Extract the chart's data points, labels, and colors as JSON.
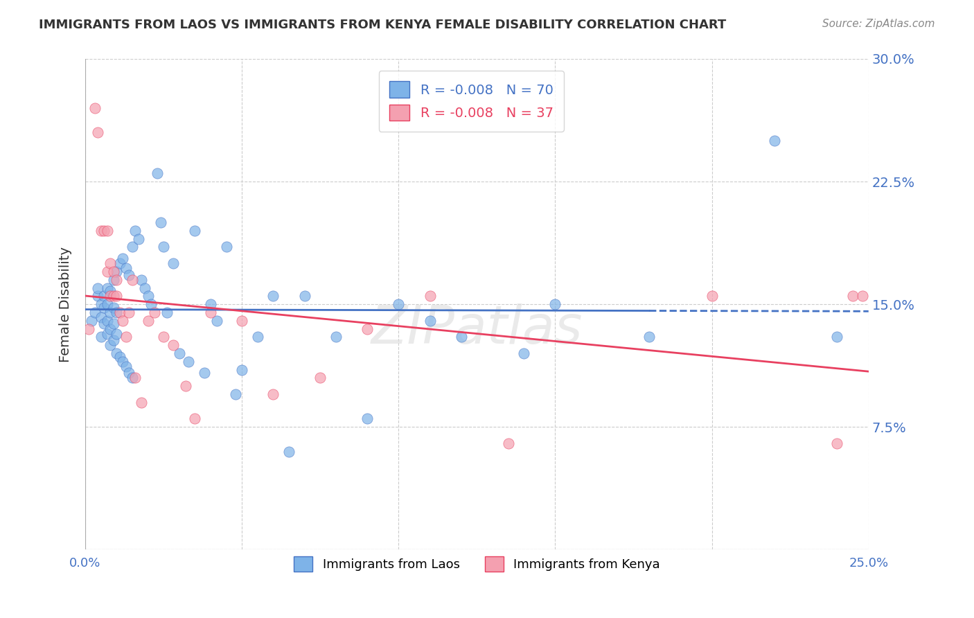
{
  "title": "IMMIGRANTS FROM LAOS VS IMMIGRANTS FROM KENYA FEMALE DISABILITY CORRELATION CHART",
  "source": "Source: ZipAtlas.com",
  "ylabel": "Female Disability",
  "xlim": [
    0.0,
    0.25
  ],
  "ylim": [
    0.0,
    0.3
  ],
  "xticks": [
    0.0,
    0.05,
    0.1,
    0.15,
    0.2,
    0.25
  ],
  "yticks": [
    0.0,
    0.075,
    0.15,
    0.225,
    0.3
  ],
  "xtick_labels": [
    "0.0%",
    "",
    "",
    "",
    "",
    "25.0%"
  ],
  "ytick_labels": [
    "",
    "7.5%",
    "15.0%",
    "22.5%",
    "30.0%"
  ],
  "legend_laos": "R = -0.008   N = 70",
  "legend_kenya": "R = -0.008   N = 37",
  "color_laos": "#7EB3E8",
  "color_kenya": "#F4A0B0",
  "regression_color_laos": "#4472C4",
  "regression_color_kenya": "#E84060",
  "watermark": "ZIPatlas",
  "background_color": "#FFFFFF",
  "laos_x": [
    0.002,
    0.003,
    0.004,
    0.004,
    0.005,
    0.005,
    0.005,
    0.006,
    0.006,
    0.006,
    0.007,
    0.007,
    0.007,
    0.007,
    0.008,
    0.008,
    0.008,
    0.008,
    0.009,
    0.009,
    0.009,
    0.009,
    0.01,
    0.01,
    0.01,
    0.01,
    0.011,
    0.011,
    0.012,
    0.012,
    0.013,
    0.013,
    0.014,
    0.014,
    0.015,
    0.015,
    0.016,
    0.017,
    0.018,
    0.019,
    0.02,
    0.021,
    0.023,
    0.024,
    0.025,
    0.026,
    0.028,
    0.03,
    0.033,
    0.035,
    0.038,
    0.04,
    0.042,
    0.045,
    0.048,
    0.05,
    0.055,
    0.06,
    0.065,
    0.07,
    0.08,
    0.09,
    0.1,
    0.11,
    0.12,
    0.14,
    0.15,
    0.18,
    0.22,
    0.24
  ],
  "laos_y": [
    0.14,
    0.145,
    0.155,
    0.16,
    0.13,
    0.142,
    0.15,
    0.138,
    0.148,
    0.155,
    0.132,
    0.14,
    0.15,
    0.16,
    0.125,
    0.135,
    0.145,
    0.158,
    0.128,
    0.138,
    0.148,
    0.165,
    0.12,
    0.132,
    0.145,
    0.17,
    0.118,
    0.175,
    0.115,
    0.178,
    0.112,
    0.172,
    0.108,
    0.168,
    0.105,
    0.185,
    0.195,
    0.19,
    0.165,
    0.16,
    0.155,
    0.15,
    0.23,
    0.2,
    0.185,
    0.145,
    0.175,
    0.12,
    0.115,
    0.195,
    0.108,
    0.15,
    0.14,
    0.185,
    0.095,
    0.11,
    0.13,
    0.155,
    0.06,
    0.155,
    0.13,
    0.08,
    0.15,
    0.14,
    0.13,
    0.12,
    0.15,
    0.13,
    0.25,
    0.13
  ],
  "kenya_x": [
    0.001,
    0.003,
    0.004,
    0.005,
    0.006,
    0.007,
    0.007,
    0.008,
    0.008,
    0.009,
    0.009,
    0.01,
    0.01,
    0.011,
    0.012,
    0.013,
    0.014,
    0.015,
    0.016,
    0.018,
    0.02,
    0.022,
    0.025,
    0.028,
    0.032,
    0.035,
    0.04,
    0.05,
    0.06,
    0.075,
    0.09,
    0.11,
    0.135,
    0.2,
    0.24,
    0.245,
    0.248
  ],
  "kenya_y": [
    0.135,
    0.27,
    0.255,
    0.195,
    0.195,
    0.195,
    0.17,
    0.175,
    0.155,
    0.17,
    0.155,
    0.165,
    0.155,
    0.145,
    0.14,
    0.13,
    0.145,
    0.165,
    0.105,
    0.09,
    0.14,
    0.145,
    0.13,
    0.125,
    0.1,
    0.08,
    0.145,
    0.14,
    0.095,
    0.105,
    0.135,
    0.155,
    0.065,
    0.155,
    0.065,
    0.155,
    0.155
  ]
}
